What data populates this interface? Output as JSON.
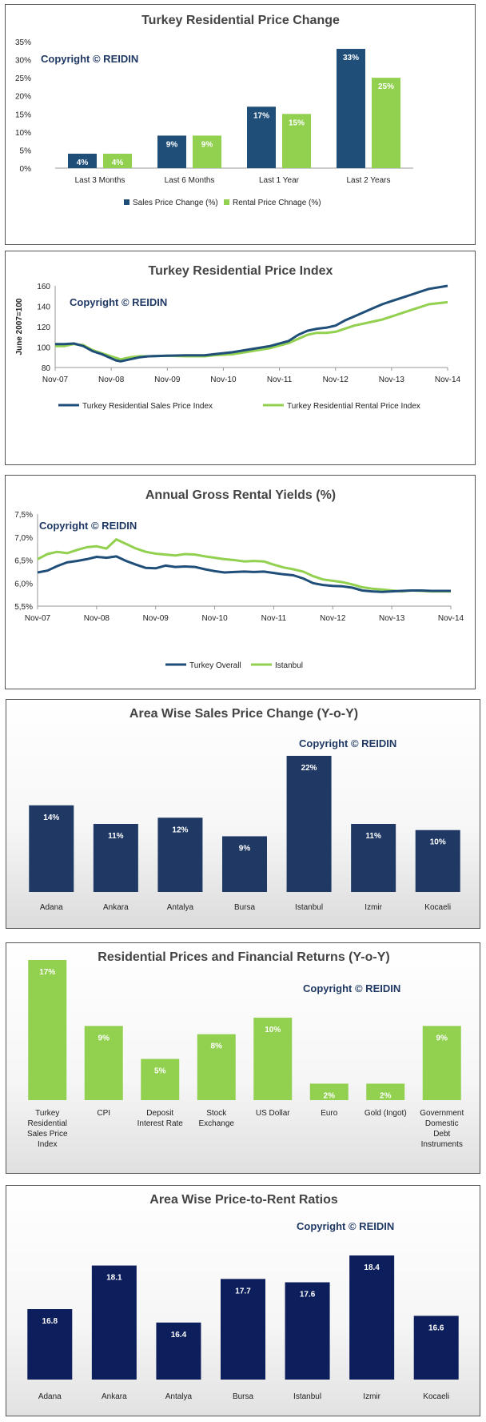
{
  "copyright": "Copyright © REIDIN",
  "colors": {
    "navy": "#1f4e79",
    "green": "#92d050",
    "dark_navy": "#1f3864",
    "deep_navy": "#0c1f5c",
    "line_navy": "#1f4e79",
    "line_green": "#92d050"
  },
  "chart_data": [
    {
      "type": "bar",
      "title": "Turkey Residential Price Change",
      "categories": [
        "Last 3 Months",
        "Last 6 Months",
        "Last 1 Year",
        "Last 2 Years"
      ],
      "series": [
        {
          "name": "Sales Price Change (%)",
          "values": [
            4,
            9,
            17,
            33
          ],
          "color": "#1f4e79"
        },
        {
          "name": "Rental Price Chnage (%)",
          "values": [
            4,
            9,
            15,
            25
          ],
          "color": "#92d050"
        }
      ],
      "data_labels": [
        [
          "4%",
          "9%",
          "17%",
          "33%"
        ],
        [
          "4%",
          "9%",
          "15%",
          "25%"
        ]
      ],
      "yticks": [
        "0%",
        "5%",
        "10%",
        "15%",
        "20%",
        "25%",
        "30%",
        "35%"
      ],
      "ylim": [
        0,
        35
      ],
      "legend": "bottom"
    },
    {
      "type": "line",
      "title": "Turkey Residential Price Index",
      "ylabel": "June 2007=100",
      "ylim": [
        80,
        160
      ],
      "yticks": [
        "80",
        "100",
        "120",
        "140",
        "160"
      ],
      "xticks": [
        "Nov-07",
        "Nov-08",
        "Nov-09",
        "Nov-10",
        "Nov-11",
        "Nov-12",
        "Nov-13",
        "Nov-14"
      ],
      "xlim": [
        0,
        84
      ],
      "series": [
        {
          "name": "Turkey Residential Sales Price Index",
          "color": "#1f4e79",
          "points": [
            [
              0,
              103
            ],
            [
              2,
              103
            ],
            [
              4,
              103.5
            ],
            [
              6,
              101
            ],
            [
              8,
              96
            ],
            [
              10,
              93
            ],
            [
              12,
              89
            ],
            [
              13,
              87
            ],
            [
              14,
              86
            ],
            [
              16,
              88
            ],
            [
              18,
              90
            ],
            [
              20,
              91
            ],
            [
              24,
              91.5
            ],
            [
              28,
              92
            ],
            [
              32,
              92
            ],
            [
              34,
              93
            ],
            [
              38,
              95
            ],
            [
              42,
              98
            ],
            [
              46,
              101
            ],
            [
              50,
              106
            ],
            [
              52,
              112
            ],
            [
              54,
              116
            ],
            [
              56,
              118
            ],
            [
              58,
              119
            ],
            [
              60,
              121
            ],
            [
              62,
              126
            ],
            [
              64,
              130
            ],
            [
              66,
              134
            ],
            [
              68,
              138
            ],
            [
              70,
              142
            ],
            [
              72,
              145
            ],
            [
              74,
              148
            ],
            [
              76,
              151
            ],
            [
              78,
              154
            ],
            [
              80,
              157
            ],
            [
              84,
              160
            ]
          ]
        },
        {
          "name": "Turkey Residential Rental Price Index",
          "color": "#92d050",
          "points": [
            [
              0,
              101
            ],
            [
              2,
              101
            ],
            [
              4,
              103
            ],
            [
              6,
              102
            ],
            [
              8,
              97
            ],
            [
              10,
              94
            ],
            [
              12,
              91
            ],
            [
              14,
              88
            ],
            [
              16,
              90
            ],
            [
              18,
              91
            ],
            [
              20,
              91
            ],
            [
              24,
              91.5
            ],
            [
              28,
              91
            ],
            [
              32,
              91
            ],
            [
              34,
              92
            ],
            [
              38,
              93
            ],
            [
              42,
              96
            ],
            [
              46,
              99
            ],
            [
              50,
              104
            ],
            [
              52,
              108
            ],
            [
              54,
              112
            ],
            [
              56,
              114
            ],
            [
              58,
              114
            ],
            [
              60,
              115
            ],
            [
              62,
              118
            ],
            [
              64,
              121
            ],
            [
              66,
              123
            ],
            [
              68,
              125
            ],
            [
              70,
              127
            ],
            [
              72,
              130
            ],
            [
              74,
              133
            ],
            [
              76,
              136
            ],
            [
              78,
              139
            ],
            [
              80,
              142
            ],
            [
              84,
              144
            ]
          ]
        }
      ],
      "legend": "bottom"
    },
    {
      "type": "line",
      "title": "Annual Gross Rental Yields (%)",
      "ylim": [
        5.5,
        7.5
      ],
      "yticks": [
        "5,5%",
        "6,0%",
        "6,5%",
        "7,0%",
        "7,5%"
      ],
      "xticks": [
        "Nov-07",
        "Nov-08",
        "Nov-09",
        "Nov-10",
        "Nov-11",
        "Nov-12",
        "Nov-13",
        "Nov-14"
      ],
      "xlim": [
        0,
        84
      ],
      "series": [
        {
          "name": "Turkey Overall",
          "color": "#1f4e79",
          "points": [
            [
              0,
              6.23
            ],
            [
              2,
              6.27
            ],
            [
              4,
              6.37
            ],
            [
              6,
              6.45
            ],
            [
              8,
              6.48
            ],
            [
              10,
              6.52
            ],
            [
              12,
              6.57
            ],
            [
              14,
              6.55
            ],
            [
              16,
              6.58
            ],
            [
              18,
              6.48
            ],
            [
              20,
              6.4
            ],
            [
              22,
              6.33
            ],
            [
              24,
              6.32
            ],
            [
              26,
              6.38
            ],
            [
              28,
              6.35
            ],
            [
              30,
              6.36
            ],
            [
              32,
              6.35
            ],
            [
              34,
              6.3
            ],
            [
              36,
              6.26
            ],
            [
              38,
              6.23
            ],
            [
              40,
              6.24
            ],
            [
              42,
              6.25
            ],
            [
              44,
              6.24
            ],
            [
              46,
              6.25
            ],
            [
              48,
              6.22
            ],
            [
              50,
              6.19
            ],
            [
              52,
              6.17
            ],
            [
              54,
              6.1
            ],
            [
              56,
              6.0
            ],
            [
              58,
              5.96
            ],
            [
              60,
              5.94
            ],
            [
              62,
              5.93
            ],
            [
              64,
              5.9
            ],
            [
              66,
              5.84
            ],
            [
              68,
              5.82
            ],
            [
              70,
              5.81
            ],
            [
              72,
              5.82
            ],
            [
              74,
              5.83
            ],
            [
              76,
              5.84
            ],
            [
              78,
              5.84
            ],
            [
              80,
              5.83
            ],
            [
              84,
              5.83
            ]
          ]
        },
        {
          "name": "Istanbul",
          "color": "#92d050",
          "points": [
            [
              0,
              6.52
            ],
            [
              2,
              6.63
            ],
            [
              4,
              6.68
            ],
            [
              6,
              6.65
            ],
            [
              8,
              6.72
            ],
            [
              10,
              6.78
            ],
            [
              12,
              6.8
            ],
            [
              14,
              6.75
            ],
            [
              16,
              6.95
            ],
            [
              18,
              6.85
            ],
            [
              20,
              6.75
            ],
            [
              22,
              6.68
            ],
            [
              24,
              6.64
            ],
            [
              26,
              6.62
            ],
            [
              28,
              6.6
            ],
            [
              30,
              6.63
            ],
            [
              32,
              6.62
            ],
            [
              34,
              6.58
            ],
            [
              36,
              6.55
            ],
            [
              38,
              6.52
            ],
            [
              40,
              6.5
            ],
            [
              42,
              6.47
            ],
            [
              44,
              6.48
            ],
            [
              46,
              6.47
            ],
            [
              48,
              6.4
            ],
            [
              50,
              6.34
            ],
            [
              52,
              6.3
            ],
            [
              54,
              6.25
            ],
            [
              56,
              6.15
            ],
            [
              58,
              6.08
            ],
            [
              60,
              6.05
            ],
            [
              62,
              6.02
            ],
            [
              64,
              5.97
            ],
            [
              66,
              5.91
            ],
            [
              68,
              5.88
            ],
            [
              70,
              5.86
            ],
            [
              72,
              5.84
            ],
            [
              74,
              5.82
            ],
            [
              76,
              5.84
            ],
            [
              78,
              5.83
            ],
            [
              80,
              5.82
            ],
            [
              84,
              5.82
            ]
          ]
        }
      ],
      "legend": "bottom"
    },
    {
      "type": "bar",
      "title": "Area Wise Sales Price Change (Y-o-Y)",
      "categories": [
        "Adana",
        "Ankara",
        "Antalya",
        "Bursa",
        "Istanbul",
        "Izmir",
        "Kocaeli"
      ],
      "values": [
        14,
        11,
        12,
        9,
        22,
        11,
        10
      ],
      "data_labels": [
        "14%",
        "11%",
        "12%",
        "9%",
        "22%",
        "11%",
        "10%"
      ],
      "color": "#1f3864"
    },
    {
      "type": "bar",
      "title": "Residential Prices and Financial Returns (Y-o-Y)",
      "categories": [
        [
          "Turkey",
          "Residential",
          "Sales Price",
          "Index"
        ],
        [
          "CPI"
        ],
        [
          "Deposit",
          "Interest Rate"
        ],
        [
          "Stock",
          "Exchange"
        ],
        [
          "US Dollar"
        ],
        [
          "Euro"
        ],
        [
          "Gold (Ingot)"
        ],
        [
          "Government",
          "Domestic",
          "Debt",
          "Instruments"
        ]
      ],
      "values": [
        17,
        9,
        5,
        8,
        10,
        2,
        2,
        9
      ],
      "data_labels": [
        "17%",
        "9%",
        "5%",
        "8%",
        "10%",
        "2%",
        "2%",
        "9%"
      ],
      "color": "#92d050"
    },
    {
      "type": "bar",
      "title": "Area Wise Price-to-Rent Ratios",
      "categories": [
        "Adana",
        "Ankara",
        "Antalya",
        "Bursa",
        "Istanbul",
        "Izmir",
        "Kocaeli"
      ],
      "values": [
        16.8,
        18.1,
        16.4,
        17.7,
        17.6,
        18.4,
        16.6
      ],
      "data_labels": [
        "16.8",
        "18.1",
        "16.4",
        "17.7",
        "17.6",
        "18.4",
        "16.6"
      ],
      "color": "#0c1f5c"
    }
  ]
}
